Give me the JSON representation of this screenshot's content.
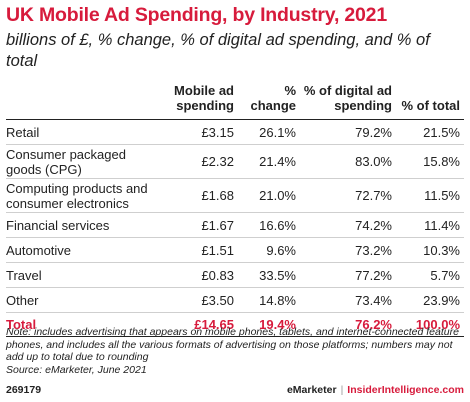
{
  "chart_data": {
    "type": "table",
    "title": "UK Mobile Ad Spending, by Industry, 2021",
    "subtitle": "billions of £, % change, % of digital ad spending, and % of total",
    "columns": [
      "",
      "Mobile ad spending",
      "% change",
      "% of digital ad spending",
      "% of total"
    ],
    "rows": [
      {
        "label": "Retail",
        "values": [
          "£3.15",
          "26.1%",
          "79.2%",
          "21.5%"
        ]
      },
      {
        "label": "Consumer packaged goods (CPG)",
        "values": [
          "£2.32",
          "21.4%",
          "83.0%",
          "15.8%"
        ]
      },
      {
        "label": "Computing products and consumer electronics",
        "values": [
          "£1.68",
          "21.0%",
          "72.7%",
          "11.5%"
        ]
      },
      {
        "label": "Financial services",
        "values": [
          "£1.67",
          "16.6%",
          "74.2%",
          "11.4%"
        ]
      },
      {
        "label": "Automotive",
        "values": [
          "£1.51",
          "9.6%",
          "73.2%",
          "10.3%"
        ]
      },
      {
        "label": "Travel",
        "values": [
          "£0.83",
          "33.5%",
          "77.2%",
          "5.7%"
        ]
      },
      {
        "label": "Other",
        "values": [
          "£3.50",
          "14.8%",
          "73.4%",
          "23.9%"
        ]
      }
    ],
    "total": {
      "label": "Total",
      "values": [
        "£14.65",
        "19.4%",
        "76.2%",
        "100.0%"
      ]
    }
  },
  "note": "Note: includes advertising that appears on mobile phones, tablets, and internet-connected feature phones, and includes all the various formats of advertising on those platforms; numbers may not add up to total due to rounding",
  "source": "Source: eMarketer, June 2021",
  "footer": {
    "id": "269179",
    "brand_primary": "eMarketer",
    "separator": "|",
    "brand_secondary": "InsiderIntelligence.com"
  },
  "colors": {
    "accent": "#d71b3c",
    "text": "#222222"
  }
}
